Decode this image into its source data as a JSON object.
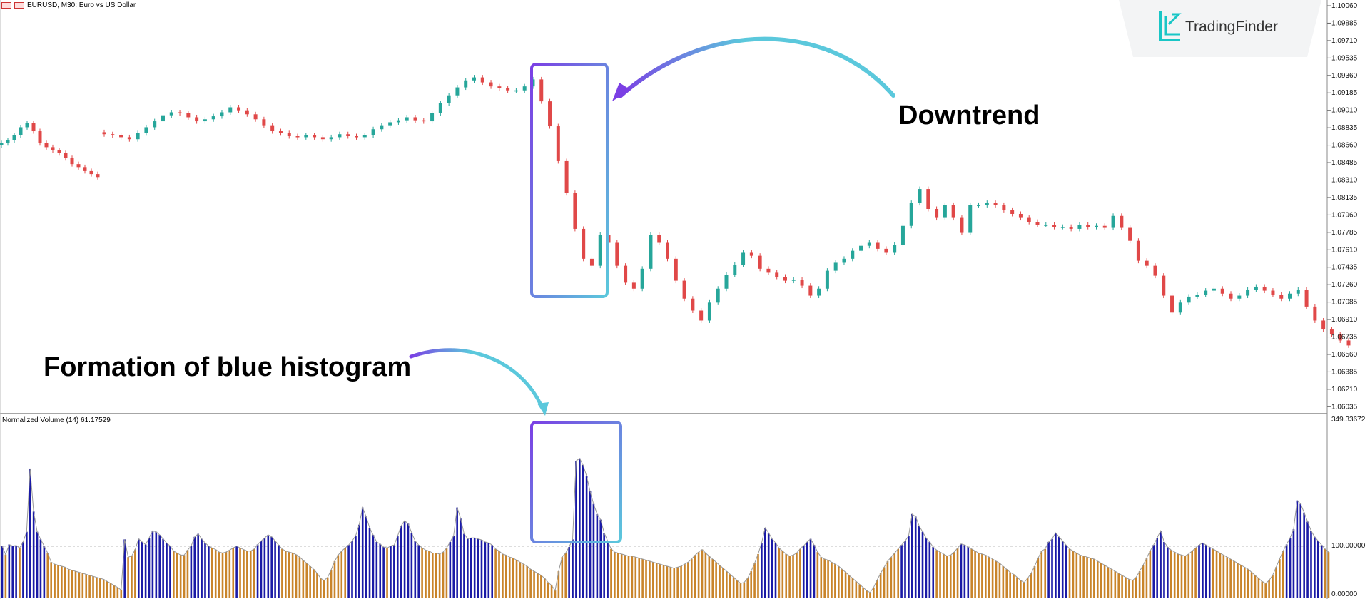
{
  "header": {
    "symbol_text": "EURUSD, M30:  Euro vs US Dollar"
  },
  "brand": {
    "name": "TradingFinder",
    "icon": "tradingfinder-logo-icon"
  },
  "annotations": {
    "downtrend": "Downtrend",
    "formation": "Formation of blue histogram"
  },
  "colors": {
    "bull": "#26a69a",
    "bear": "#e04848",
    "volume_high": "#1a1aa6",
    "volume_low": "#c9842a",
    "box_start": "#7b3fe4",
    "box_end": "#5bc8dc",
    "arrow": "#5bc8dc"
  },
  "chart_data": [
    {
      "type": "candlestick",
      "title": "EURUSD, M30:  Euro vs US Dollar",
      "y_ticks": [
        "1.10060",
        "1.09885",
        "1.09710",
        "1.09535",
        "1.09360",
        "1.09185",
        "1.09010",
        "1.08835",
        "1.08660",
        "1.08485",
        "1.08310",
        "1.08135",
        "1.07960",
        "1.07785",
        "1.07610",
        "1.07435",
        "1.07260",
        "1.07085",
        "1.06910",
        "1.06735",
        "1.06560",
        "1.06385",
        "1.06210",
        "1.06035"
      ],
      "ylim": [
        1.0598,
        1.1006
      ],
      "series": [
        {
          "values": [
            1.0868,
            1.0871,
            1.0876,
            1.0884,
            1.0888,
            1.088,
            1.0868,
            1.0864,
            1.0861,
            1.0858,
            1.0853,
            1.0847,
            1.0844,
            1.084,
            1.0837,
            1.0834,
            1.0877,
            1.0876,
            1.0874,
            1.0872,
            1.0878,
            1.0884,
            1.089,
            1.0896,
            1.0899,
            1.0898,
            1.0894,
            1.089,
            1.0892,
            1.0895,
            1.0899,
            1.0904,
            1.0901,
            1.0897,
            1.0892,
            1.0886,
            1.088,
            1.0878,
            1.0875,
            1.0874,
            1.0876,
            1.0874,
            1.0872,
            1.0874,
            1.0877,
            1.0875,
            1.0874,
            1.0876,
            1.0882,
            1.0886,
            1.0889,
            1.0891,
            1.0894,
            1.0891,
            1.089,
            1.0898,
            1.0908,
            1.0916,
            1.0924,
            1.0931,
            1.0934,
            1.0929,
            1.0925,
            1.0923,
            1.0921,
            1.0921,
            1.0925,
            1.0932,
            1.091,
            1.0885,
            1.085,
            1.0818,
            1.0782,
            1.0752,
            1.0745,
            1.0776,
            1.0768,
            1.0745,
            1.0728,
            1.0722,
            1.0742,
            1.0776,
            1.0768,
            1.0752,
            1.073,
            1.0712,
            1.07,
            1.069,
            1.0708,
            1.0722,
            1.0736,
            1.0746,
            1.0758,
            1.0755,
            1.0742,
            1.0738,
            1.0734,
            1.073,
            1.0731,
            1.0725,
            1.0715,
            1.0722,
            1.074,
            1.0748,
            1.0752,
            1.076,
            1.0765,
            1.0768,
            1.0762,
            1.0758,
            1.0766,
            1.0785,
            1.0808,
            1.0822,
            1.0802,
            1.0793,
            1.0806,
            1.0793,
            1.0778,
            1.0806,
            1.0806,
            1.0808,
            1.0806,
            1.0801,
            1.0797,
            1.0793,
            1.0789,
            1.0786,
            1.0786,
            1.0784,
            1.0784,
            1.0782,
            1.0786,
            1.0784,
            1.0785,
            1.0783,
            1.0795,
            1.0783,
            1.077,
            1.075,
            1.0745,
            1.0735,
            1.0715,
            1.0698,
            1.0708,
            1.0714,
            1.0716,
            1.072,
            1.0722,
            1.0717,
            1.0712,
            1.0715,
            1.0721,
            1.0724,
            1.072,
            1.0716,
            1.0712,
            1.0717,
            1.0721,
            1.0704,
            1.069,
            1.0681,
            1.0676,
            1.067,
            1.0665
          ]
        }
      ]
    },
    {
      "type": "bar",
      "title": "Normalized Volume (14) 61.17529",
      "y_ticks": [
        "349.33672",
        "100.00000",
        "0.00000"
      ],
      "ylim": [
        0,
        349.33672
      ],
      "threshold": 100,
      "series": [
        {
          "values": [
            102,
            85,
            105,
            102,
            103,
            98,
            110,
            130,
            255,
            170,
            130,
            115,
            102,
            88,
            70,
            66,
            64,
            62,
            60,
            56,
            54,
            52,
            50,
            48,
            46,
            44,
            42,
            40,
            38,
            36,
            32,
            28,
            24,
            20,
            15,
            115,
            80,
            82,
            95,
            116,
            110,
            105,
            118,
            132,
            130,
            124,
            116,
            108,
            102,
            92,
            88,
            84,
            84,
            94,
            102,
            120,
            126,
            116,
            108,
            102,
            98,
            95,
            90,
            88,
            90,
            94,
            98,
            102,
            98,
            95,
            92,
            92,
            96,
            105,
            112,
            118,
            124,
            120,
            112,
            104,
            96,
            92,
            90,
            88,
            85,
            80,
            74,
            68,
            62,
            56,
            48,
            38,
            34,
            40,
            55,
            72,
            84,
            92,
            98,
            104,
            112,
            122,
            144,
            178,
            160,
            138,
            124,
            110,
            106,
            100,
            98,
            102,
            104,
            122,
            142,
            152,
            146,
            128,
            112,
            104,
            98,
            94,
            92,
            88,
            88,
            86,
            90,
            98,
            110,
            122,
            178,
            156,
            126,
            116,
            118,
            118,
            116,
            114,
            110,
            108,
            104,
            96,
            92,
            86,
            84,
            80,
            78,
            74,
            70,
            66,
            62,
            56,
            52,
            48,
            44,
            38,
            30,
            24,
            14,
            52,
            80,
            88,
            100,
            115,
            270,
            275,
            262,
            240,
            210,
            185,
            165,
            154,
            128,
            112,
            96,
            90,
            88,
            86,
            84,
            82,
            82,
            80,
            78,
            76,
            74,
            72,
            70,
            68,
            66,
            64,
            62,
            60,
            58,
            60,
            62,
            66,
            70,
            76,
            84,
            90,
            95,
            88,
            82,
            76,
            70,
            64,
            58,
            52,
            46,
            40,
            34,
            28,
            30,
            38,
            52,
            68,
            86,
            108,
            138,
            128,
            116,
            108,
            98,
            92,
            86,
            82,
            84,
            88,
            96,
            102,
            110,
            116,
            104,
            90,
            80,
            76,
            74,
            70,
            66,
            62,
            56,
            50,
            44,
            38,
            32,
            26,
            20,
            14,
            10,
            20,
            35,
            48,
            60,
            72,
            80,
            88,
            96,
            104,
            112,
            122,
            165,
            160,
            142,
            130,
            118,
            110,
            100,
            94,
            90,
            86,
            82,
            84,
            90,
            98,
            106,
            104,
            100,
            96,
            92,
            88,
            86,
            84,
            80,
            76,
            72,
            68,
            62,
            56,
            50,
            46,
            40,
            34,
            30,
            38,
            48,
            62,
            78,
            92,
            96,
            110,
            116,
            128,
            120,
            112,
            104,
            96,
            92,
            88,
            84,
            82,
            80,
            78,
            76,
            72,
            68,
            64,
            60,
            56,
            52,
            48,
            44,
            40,
            36,
            34,
            40,
            52,
            64,
            78,
            92,
            104,
            118,
            132,
            110,
            100,
            94,
            90,
            86,
            84,
            82,
            86,
            92,
            98,
            104,
            108,
            104,
            100,
            96,
            92,
            88,
            84,
            80,
            76,
            72,
            68,
            64,
            60,
            56,
            50,
            44,
            38,
            32,
            28,
            34,
            44,
            60,
            76,
            92,
            105,
            118,
            135,
            192,
            185,
            168,
            150,
            132,
            120,
            112,
            104,
            96,
            90
          ]
        }
      ]
    }
  ]
}
